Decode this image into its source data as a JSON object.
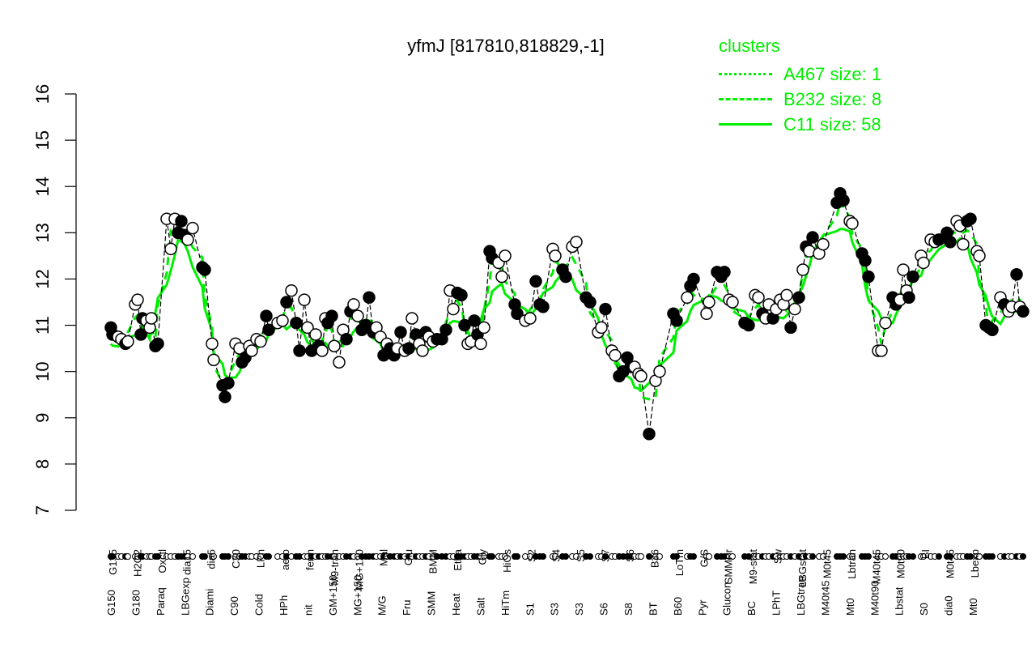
{
  "chart_data": {
    "type": "line",
    "title": "yfmJ [817810,818829,-1]",
    "xlabel": "",
    "ylabel": "",
    "ylim": [
      7,
      16
    ],
    "yticks": [
      7,
      8,
      9,
      10,
      11,
      12,
      13,
      14,
      15,
      16
    ],
    "grid": false,
    "legend": {
      "title": "clusters",
      "position": "top-right",
      "entries": [
        {
          "label": "A467 size: 1",
          "style": "dotted"
        },
        {
          "label": "B232 size: 8",
          "style": "dashed"
        },
        {
          "label": "C11 size: 58",
          "style": "solid"
        }
      ]
    },
    "x_tick_labels_top": [
      "G135",
      "H2O2",
      "Oxctl",
      "dia15",
      "dia5",
      "C30",
      "LPh",
      "aero",
      "ferm",
      "M9-tran",
      "MG+120",
      "Mal",
      "Glu",
      "BMM",
      "Etha",
      "Gly",
      "HiOs",
      "S2",
      "S4",
      "S5",
      "S7",
      "S6",
      "B36",
      "LoTm",
      "G/S",
      "SMMPr",
      "M9-stat",
      "Sw",
      "LBGstat",
      "M0t45",
      "Lbtran",
      "M40t45",
      "M0t90",
      "BI",
      "M0t45",
      "Lbexp"
    ],
    "x_tick_labels_bottom": [
      "G150",
      "G180",
      "Paraq",
      "LBGexp",
      "Diami",
      "C90",
      "Cold",
      "HPh",
      "nit",
      "GM+150",
      "MG+150",
      "M/G",
      "Fru",
      "SMM",
      "Heat",
      "Salt",
      "HiTm",
      "S1",
      "S3",
      "S3",
      "S6",
      "S8",
      "BT",
      "B60",
      "Pyr",
      "Glucon",
      "BC",
      "LPhT",
      "LBGtran",
      "M40t45",
      "Mt0",
      "M40t90",
      "Lbstat",
      "S0",
      "dia0",
      "Mt0"
    ],
    "series": [
      {
        "name": "yfmJ expression",
        "style": "points+line",
        "color": "#000000",
        "points": [
          [
            137,
            10.95,
            1
          ],
          [
            139,
            10.8,
            1
          ],
          [
            146,
            10.75,
            0
          ],
          [
            150,
            10.7,
            0
          ],
          [
            155,
            10.6,
            1
          ],
          [
            158,
            10.65,
            0
          ],
          [
            167,
            11.45,
            0
          ],
          [
            170,
            11.55,
            0
          ],
          [
            174,
            10.8,
            1
          ],
          [
            176,
            11.15,
            1
          ],
          [
            181,
            11.1,
            0
          ],
          [
            185,
            10.95,
            0
          ],
          [
            187,
            11.15,
            0
          ],
          [
            192,
            10.55,
            1
          ],
          [
            195,
            10.6,
            1
          ],
          [
            206,
            13.3,
            0
          ],
          [
            211,
            12.65,
            0
          ],
          [
            216,
            13.3,
            0
          ],
          [
            220,
            13.0,
            1
          ],
          [
            224,
            13.25,
            1
          ],
          [
            228,
            12.95,
            1
          ],
          [
            232,
            12.85,
            0
          ],
          [
            238,
            13.1,
            0
          ],
          [
            250,
            12.25,
            1
          ],
          [
            253,
            12.2,
            1
          ],
          [
            262,
            10.6,
            0
          ],
          [
            264,
            10.25,
            0
          ],
          [
            275,
            9.7,
            1
          ],
          [
            278,
            9.45,
            1
          ],
          [
            282,
            9.75,
            1
          ],
          [
            291,
            10.6,
            0
          ],
          [
            296,
            10.5,
            0
          ],
          [
            299,
            10.2,
            1
          ],
          [
            303,
            10.3,
            1
          ],
          [
            308,
            10.55,
            0
          ],
          [
            311,
            10.45,
            0
          ],
          [
            317,
            10.7,
            0
          ],
          [
            322,
            10.65,
            0
          ],
          [
            329,
            11.2,
            1
          ],
          [
            332,
            10.9,
            1
          ],
          [
            343,
            11.05,
            0
          ],
          [
            349,
            11.1,
            0
          ],
          [
            354,
            11.5,
            1
          ],
          [
            360,
            11.75,
            0
          ],
          [
            366,
            11.05,
            1
          ],
          [
            370,
            10.45,
            1
          ],
          [
            376,
            11.55,
            0
          ],
          [
            380,
            10.95,
            0
          ],
          [
            385,
            10.45,
            1
          ],
          [
            390,
            10.8,
            0
          ],
          [
            394,
            10.55,
            1
          ],
          [
            398,
            10.45,
            0
          ],
          [
            402,
            11.15,
            0
          ],
          [
            405,
            11.05,
            1
          ],
          [
            410,
            11.2,
            1
          ],
          [
            413,
            10.55,
            0
          ],
          [
            419,
            10.2,
            0
          ],
          [
            424,
            10.9,
            0
          ],
          [
            428,
            10.7,
            1
          ],
          [
            433,
            11.3,
            1
          ],
          [
            437,
            11.45,
            0
          ],
          [
            442,
            11.2,
            0
          ],
          [
            447,
            10.9,
            1
          ],
          [
            452,
            11.0,
            1
          ],
          [
            456,
            11.6,
            1
          ],
          [
            461,
            10.85,
            1
          ],
          [
            465,
            10.95,
            0
          ],
          [
            470,
            10.75,
            0
          ],
          [
            474,
            10.35,
            1
          ],
          [
            478,
            10.6,
            0
          ],
          [
            482,
            10.5,
            1
          ],
          [
            487,
            10.35,
            1
          ],
          [
            491,
            10.5,
            0
          ],
          [
            495,
            10.85,
            1
          ],
          [
            500,
            10.45,
            0
          ],
          [
            505,
            10.5,
            1
          ],
          [
            509,
            11.15,
            0
          ],
          [
            514,
            10.8,
            1
          ],
          [
            518,
            10.6,
            0
          ],
          [
            522,
            10.45,
            0
          ],
          [
            526,
            10.85,
            1
          ],
          [
            530,
            10.75,
            0
          ],
          [
            535,
            10.65,
            0
          ],
          [
            540,
            10.7,
            1
          ],
          [
            546,
            10.7,
            1
          ],
          [
            551,
            10.9,
            1
          ],
          [
            556,
            11.75,
            0
          ],
          [
            560,
            11.35,
            0
          ],
          [
            565,
            11.7,
            1
          ],
          [
            570,
            11.65,
            1
          ],
          [
            574,
            11.0,
            1
          ],
          [
            578,
            10.6,
            0
          ],
          [
            582,
            10.65,
            0
          ],
          [
            586,
            11.1,
            1
          ],
          [
            590,
            10.8,
            1
          ],
          [
            594,
            10.6,
            0
          ],
          [
            598,
            10.95,
            0
          ],
          [
            605,
            12.6,
            1
          ],
          [
            608,
            12.45,
            1
          ],
          [
            616,
            12.35,
            0
          ],
          [
            620,
            12.05,
            0
          ],
          [
            624,
            12.5,
            0
          ],
          [
            636,
            11.45,
            1
          ],
          [
            639,
            11.25,
            1
          ],
          [
            649,
            11.1,
            0
          ],
          [
            655,
            11.15,
            0
          ],
          [
            662,
            11.95,
            1
          ],
          [
            667,
            11.45,
            1
          ],
          [
            671,
            11.4,
            1
          ],
          [
            683,
            12.65,
            0
          ],
          [
            686,
            12.5,
            0
          ],
          [
            695,
            12.2,
            1
          ],
          [
            699,
            12.05,
            1
          ],
          [
            707,
            12.7,
            0
          ],
          [
            712,
            12.8,
            0
          ],
          [
            724,
            11.6,
            1
          ],
          [
            729,
            11.5,
            1
          ],
          [
            739,
            10.85,
            0
          ],
          [
            743,
            10.95,
            0
          ],
          [
            748,
            11.35,
            1
          ],
          [
            756,
            10.45,
            0
          ],
          [
            760,
            10.35,
            0
          ],
          [
            765,
            9.9,
            1
          ],
          [
            770,
            10.0,
            1
          ],
          [
            775,
            10.3,
            1
          ],
          [
            780,
            10.1,
            1
          ],
          [
            784,
            10.1,
            0
          ],
          [
            789,
            9.95,
            0
          ],
          [
            792,
            9.9,
            0
          ],
          [
            802,
            8.65,
            1
          ],
          [
            810,
            9.8,
            0
          ],
          [
            815,
            10.0,
            0
          ],
          [
            832,
            11.25,
            1
          ],
          [
            836,
            11.1,
            1
          ],
          [
            849,
            11.6,
            0
          ],
          [
            853,
            11.85,
            1
          ],
          [
            857,
            12.0,
            1
          ],
          [
            873,
            11.25,
            0
          ],
          [
            876,
            11.5,
            0
          ],
          [
            886,
            12.15,
            1
          ],
          [
            891,
            12.05,
            1
          ],
          [
            895,
            12.15,
            1
          ],
          [
            901,
            11.55,
            0
          ],
          [
            905,
            11.5,
            0
          ],
          [
            920,
            11.05,
            1
          ],
          [
            925,
            11.0,
            1
          ],
          [
            933,
            11.65,
            0
          ],
          [
            937,
            11.6,
            0
          ],
          [
            942,
            11.25,
            1
          ],
          [
            946,
            11.15,
            0
          ],
          [
            950,
            11.45,
            0
          ],
          [
            955,
            11.15,
            1
          ],
          [
            959,
            11.35,
            0
          ],
          [
            964,
            11.55,
            0
          ],
          [
            968,
            11.45,
            0
          ],
          [
            972,
            11.65,
            0
          ],
          [
            977,
            10.95,
            1
          ],
          [
            982,
            11.35,
            0
          ],
          [
            987,
            11.6,
            1
          ],
          [
            992,
            12.2,
            0
          ],
          [
            996,
            12.7,
            1
          ],
          [
            1000,
            12.6,
            0
          ],
          [
            1004,
            12.9,
            1
          ],
          [
            1012,
            12.55,
            0
          ],
          [
            1017,
            12.75,
            0
          ],
          [
            1034,
            13.65,
            1
          ],
          [
            1038,
            13.85,
            1
          ],
          [
            1042,
            13.7,
            1
          ],
          [
            1050,
            13.25,
            0
          ],
          [
            1053,
            13.2,
            0
          ],
          [
            1065,
            12.55,
            1
          ],
          [
            1069,
            12.4,
            1
          ],
          [
            1073,
            12.05,
            1
          ],
          [
            1085,
            10.45,
            0
          ],
          [
            1089,
            10.45,
            0
          ],
          [
            1094,
            11.05,
            0
          ],
          [
            1103,
            11.6,
            1
          ],
          [
            1107,
            11.45,
            1
          ],
          [
            1112,
            11.55,
            0
          ],
          [
            1116,
            12.2,
            0
          ],
          [
            1120,
            11.75,
            0
          ],
          [
            1123,
            11.6,
            1
          ],
          [
            1128,
            12.05,
            1
          ],
          [
            1138,
            12.5,
            0
          ],
          [
            1141,
            12.35,
            0
          ],
          [
            1150,
            12.85,
            0
          ],
          [
            1155,
            12.8,
            0
          ],
          [
            1160,
            12.85,
            1
          ],
          [
            1170,
            13.0,
            1
          ],
          [
            1174,
            12.8,
            1
          ],
          [
            1182,
            13.25,
            0
          ],
          [
            1186,
            13.15,
            0
          ],
          [
            1190,
            12.75,
            0
          ],
          [
            1195,
            13.25,
            1
          ],
          [
            1199,
            13.3,
            1
          ],
          [
            1207,
            12.6,
            0
          ],
          [
            1210,
            12.5,
            0
          ],
          [
            1218,
            11.0,
            1
          ],
          [
            1222,
            10.95,
            1
          ],
          [
            1226,
            10.9,
            1
          ],
          [
            1236,
            11.6,
            0
          ],
          [
            1241,
            11.45,
            1
          ],
          [
            1246,
            11.3,
            0
          ],
          [
            1250,
            11.4,
            0
          ],
          [
            1256,
            12.1,
            1
          ],
          [
            1260,
            11.4,
            0
          ],
          [
            1264,
            11.3,
            1
          ]
        ]
      },
      {
        "name": "C11 size: 58",
        "style": "solid",
        "color": "#00ee00"
      },
      {
        "name": "B232 size: 8",
        "style": "dashed",
        "color": "#00ee00"
      },
      {
        "name": "A467 size: 1",
        "style": "dotted",
        "color": "#00ee00"
      }
    ]
  },
  "legend": {
    "title": "clusters",
    "entries": [
      "A467 size: 1",
      "B232 size: 8",
      "C11 size: 58"
    ]
  },
  "colors": {
    "cluster_lines": "#00ee00",
    "points": "#000000",
    "axis": "#000000"
  }
}
